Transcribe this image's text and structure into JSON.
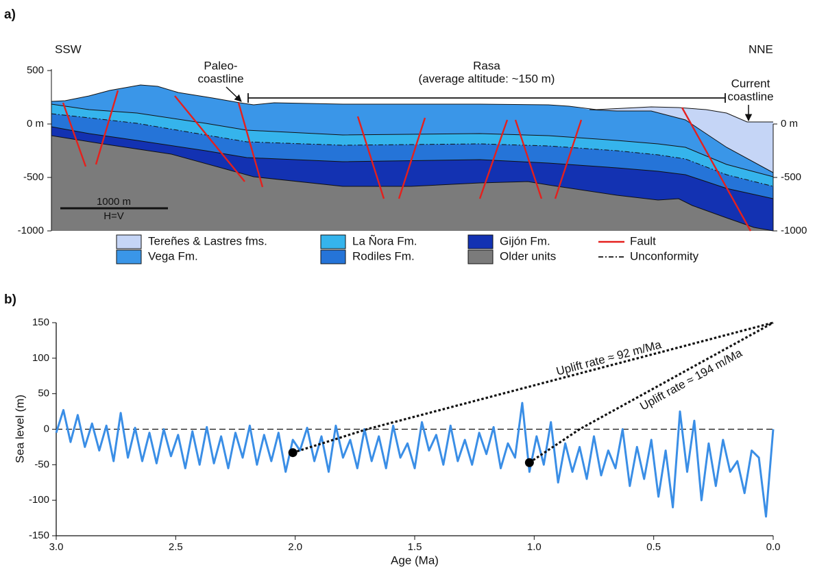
{
  "panel_a": {
    "label": "a)",
    "left_end": "SSW",
    "right_end": "NNE",
    "paleo_coastline": [
      "Paleo-",
      "coastline"
    ],
    "rasa": [
      "Rasa",
      "(average altitude: ~150 m)"
    ],
    "current_coastline": [
      "Current",
      "coastline"
    ],
    "scale_bar": [
      "1000 m",
      "H=V"
    ],
    "ylim": [
      -1000,
      500
    ],
    "yticks": [
      500,
      {
        "value": 0,
        "label": "0 m"
      },
      -500,
      -1000
    ],
    "y2ticks": [
      {
        "value": 0,
        "label": "0 m"
      },
      -500,
      -1000
    ],
    "legend": [
      {
        "name": "Tereñes & Lastres fms.",
        "color": "#c5d5f6"
      },
      {
        "name": "Vega Fm.",
        "color": "#3a96e8"
      },
      {
        "name": "La Ñora Fm.",
        "color": "#35b4ec"
      },
      {
        "name": "Rodiles Fm.",
        "color": "#2574d8"
      },
      {
        "name": "Gijón Fm.",
        "color": "#1332b2"
      },
      {
        "name": "Older units",
        "color": "#7b7b7b"
      },
      {
        "name": "Fault",
        "color": "#e5201d"
      },
      {
        "name": "Unconformity",
        "color": "#111111"
      }
    ]
  },
  "chart_data": {
    "type": "line",
    "panel_label": "b)",
    "xlabel": "Age (Ma)",
    "ylabel": "Sea level (m)",
    "xlim": [
      3,
      0
    ],
    "ylim": [
      -150,
      150
    ],
    "xticks": [
      {
        "value": 3,
        "label": "3.0"
      },
      2.5,
      {
        "value": 2,
        "label": "2.0"
      },
      1.5,
      {
        "value": 1,
        "label": "1.0"
      },
      0.5,
      {
        "value": 0,
        "label": "0.0"
      }
    ],
    "yticks": [
      150,
      100,
      50,
      0,
      -50,
      -100,
      -150
    ],
    "reference_line": 0,
    "x": [
      3.0,
      2.97,
      2.94,
      2.91,
      2.88,
      2.85,
      2.82,
      2.79,
      2.76,
      2.73,
      2.7,
      2.67,
      2.64,
      2.61,
      2.58,
      2.55,
      2.52,
      2.49,
      2.46,
      2.43,
      2.4,
      2.37,
      2.34,
      2.31,
      2.28,
      2.25,
      2.22,
      2.19,
      2.16,
      2.13,
      2.1,
      2.07,
      2.04,
      2.01,
      1.98,
      1.95,
      1.92,
      1.89,
      1.86,
      1.83,
      1.8,
      1.77,
      1.74,
      1.71,
      1.68,
      1.65,
      1.62,
      1.59,
      1.56,
      1.53,
      1.5,
      1.47,
      1.44,
      1.41,
      1.38,
      1.35,
      1.32,
      1.29,
      1.26,
      1.23,
      1.2,
      1.17,
      1.14,
      1.11,
      1.08,
      1.05,
      1.02,
      0.99,
      0.96,
      0.93,
      0.9,
      0.87,
      0.84,
      0.81,
      0.78,
      0.75,
      0.72,
      0.69,
      0.66,
      0.63,
      0.6,
      0.57,
      0.54,
      0.51,
      0.48,
      0.45,
      0.42,
      0.39,
      0.36,
      0.33,
      0.3,
      0.27,
      0.24,
      0.21,
      0.18,
      0.15,
      0.12,
      0.09,
      0.06,
      0.03,
      0.0
    ],
    "series": [
      {
        "color": "#3a8ee6",
        "values": [
          -5,
          27,
          -18,
          20,
          -25,
          8,
          -30,
          5,
          -45,
          23,
          -40,
          2,
          -45,
          -5,
          -48,
          0,
          -38,
          -8,
          -55,
          -3,
          -50,
          3,
          -48,
          -10,
          -55,
          -5,
          -40,
          5,
          -50,
          -8,
          -45,
          -5,
          -60,
          -15,
          -30,
          2,
          -45,
          -10,
          -60,
          5,
          -40,
          -15,
          -55,
          0,
          -45,
          -10,
          -55,
          5,
          -40,
          -20,
          -55,
          10,
          -30,
          -8,
          -50,
          5,
          -45,
          -15,
          -50,
          -5,
          -35,
          3,
          -55,
          -20,
          -40,
          37,
          -60,
          -10,
          -50,
          10,
          -75,
          -20,
          -60,
          -25,
          -70,
          -10,
          -65,
          -30,
          -55,
          0,
          -80,
          -25,
          -70,
          -15,
          -95,
          -30,
          -110,
          25,
          -60,
          12,
          -100,
          -20,
          -80,
          -15,
          -60,
          -45,
          -90,
          -30,
          -40,
          -123,
          0
        ]
      }
    ],
    "points": {
      "x": [
        2.01,
        1.02
      ],
      "values": [
        -33,
        -47
      ]
    },
    "trend_lines": [
      {
        "label": "Uplift rate ≈ 92 m/Ma",
        "x": [
          2.01,
          1.7,
          0
        ],
        "values": [
          -33,
          0,
          150
        ]
      },
      {
        "label": "Uplift rate ≈ 194 m/Ma",
        "x": [
          1.02,
          0.81,
          0
        ],
        "values": [
          -47,
          0,
          150
        ]
      }
    ]
  }
}
